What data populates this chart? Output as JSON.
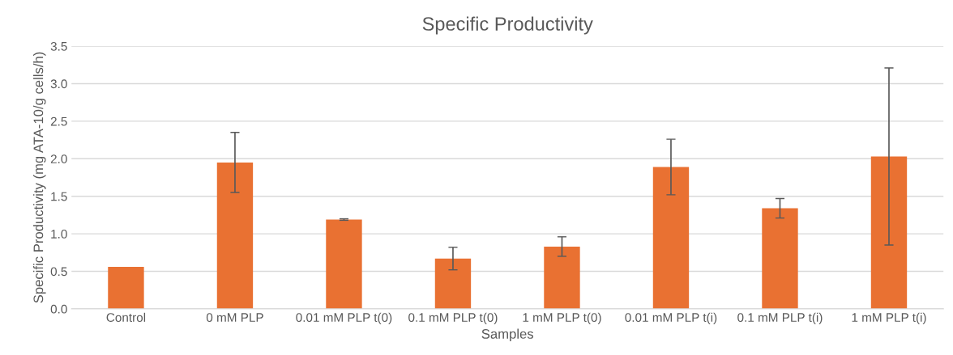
{
  "chart_data": {
    "type": "bar",
    "title": "Specific Productivity",
    "xlabel": "Samples",
    "ylabel": "Specific Productivity (mg ATA-10/g cells/h)",
    "categories": [
      "Control",
      "0 mM PLP",
      "0.01 mM PLP t(0)",
      "0.1 mM PLP t(0)",
      "1 mM PLP t(0)",
      "0.01 mM PLP t(i)",
      "0.1 mM PLP t(i)",
      "1 mM PLP t(i)"
    ],
    "values": [
      0.56,
      1.95,
      1.19,
      0.67,
      0.83,
      1.89,
      1.34,
      2.03
    ],
    "errors": [
      null,
      0.4,
      0.01,
      0.15,
      0.13,
      0.37,
      0.13,
      1.18
    ],
    "color": "#e97132",
    "ylim": [
      0,
      3.5
    ],
    "yticks": [
      {
        "value": 0,
        "label": "0.0"
      },
      {
        "value": 0.5,
        "label": "0.5"
      },
      {
        "value": 1,
        "label": "1.0"
      },
      {
        "value": 1.5,
        "label": "1.5"
      },
      {
        "value": 2,
        "label": "2.0"
      },
      {
        "value": 2.5,
        "label": "2.5"
      },
      {
        "value": 3,
        "label": "3.0"
      },
      {
        "value": 3.5,
        "label": "3.5"
      }
    ],
    "grid": "y"
  }
}
